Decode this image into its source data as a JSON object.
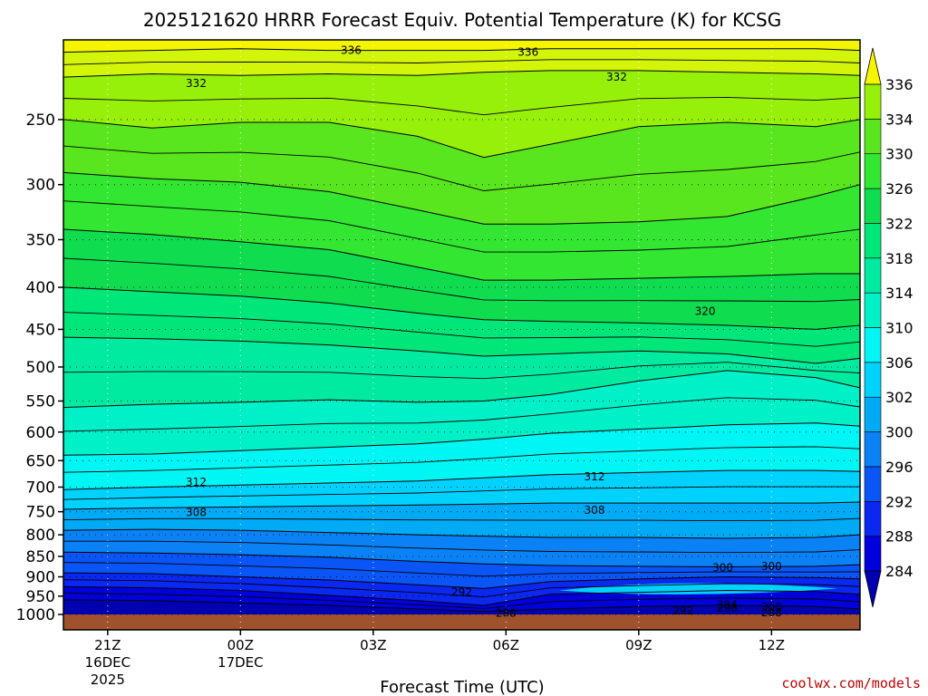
{
  "chart_data": {
    "type": "contour",
    "title": "2025121620 HRRR Forecast Equiv. Potential Temperature (K) for KCSG",
    "xlabel": "Forecast Time (UTC)",
    "credit": "coolwx.com/models",
    "y_ticks": [
      250,
      300,
      350,
      400,
      450,
      500,
      550,
      600,
      650,
      700,
      750,
      800,
      850,
      900,
      950,
      1000
    ],
    "y_log_scale": true,
    "y_range": [
      200,
      1000
    ],
    "x_range_hours": [
      -1,
      17
    ],
    "x_ticks": [
      {
        "label": "21Z",
        "sub1": "16DEC",
        "sub2": "2025",
        "hour": 0
      },
      {
        "label": "00Z",
        "sub1": "17DEC",
        "sub2": "",
        "hour": 3
      },
      {
        "label": "03Z",
        "sub1": "",
        "sub2": "",
        "hour": 6
      },
      {
        "label": "06Z",
        "sub1": "",
        "sub2": "",
        "hour": 9
      },
      {
        "label": "09Z",
        "sub1": "",
        "sub2": "",
        "hour": 12
      },
      {
        "label": "12Z",
        "sub1": "",
        "sub2": "",
        "hour": 15
      }
    ],
    "colorbar": {
      "levels": [
        284,
        288,
        292,
        296,
        300,
        302,
        306,
        310,
        314,
        318,
        322,
        326,
        330,
        334,
        336
      ],
      "labels": [
        "284",
        "288",
        "292",
        "296",
        "300",
        "302",
        "306",
        "310",
        "314",
        "318",
        "322",
        "326",
        "330",
        "334",
        "336"
      ],
      "colors": [
        "#0000b0",
        "#0000dc",
        "#0a28f0",
        "#0a55f5",
        "#0a82f5",
        "#00aaf5",
        "#00d2ff",
        "#00f5f5",
        "#00f0c8",
        "#00eba0",
        "#00e678",
        "#10dc50",
        "#32e632",
        "#5ae61e",
        "#96f00a",
        "#d2f50a",
        "#f5f500"
      ]
    },
    "ground_color": "#a0522d",
    "contour_labels": [
      {
        "text": "336",
        "hour": 5.5,
        "p": 206
      },
      {
        "text": "336",
        "hour": 9.5,
        "p": 207
      },
      {
        "text": "332",
        "hour": 2,
        "p": 226
      },
      {
        "text": "332",
        "hour": 11.5,
        "p": 222
      },
      {
        "text": "320",
        "hour": 13.5,
        "p": 428
      },
      {
        "text": "312",
        "hour": 2,
        "p": 690
      },
      {
        "text": "312",
        "hour": 11,
        "p": 680
      },
      {
        "text": "308",
        "hour": 2,
        "p": 752
      },
      {
        "text": "308",
        "hour": 11,
        "p": 747
      },
      {
        "text": "300",
        "hour": 13.9,
        "p": 878
      },
      {
        "text": "300",
        "hour": 15,
        "p": 874
      },
      {
        "text": "292",
        "hour": 8,
        "p": 940
      },
      {
        "text": "304",
        "hour": 14,
        "p": 974
      },
      {
        "text": "300",
        "hour": 15,
        "p": 980
      },
      {
        "text": "296",
        "hour": 14,
        "p": 982
      },
      {
        "text": "292",
        "hour": 13,
        "p": 990
      },
      {
        "text": "288",
        "hour": 9,
        "p": 996
      },
      {
        "text": "288",
        "hour": 15,
        "p": 995
      }
    ]
  }
}
